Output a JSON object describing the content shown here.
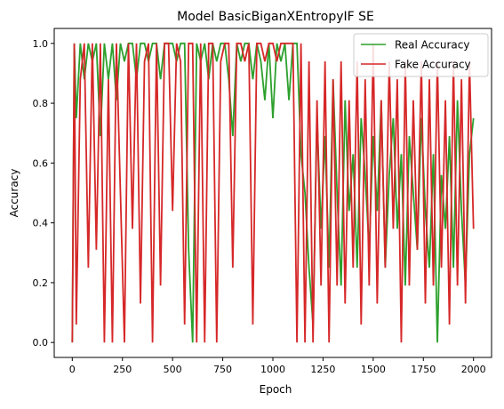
{
  "chart_data": {
    "type": "line",
    "title": "Model BasicBiganXEntropyIF SE",
    "xlabel": "Epoch",
    "ylabel": "Accuracy",
    "xlim": [
      -90,
      2090
    ],
    "ylim": [
      -0.05,
      1.05
    ],
    "x_ticks": [
      0,
      250,
      500,
      750,
      1000,
      1250,
      1500,
      1750,
      2000
    ],
    "y_ticks": [
      0.0,
      0.2,
      0.4,
      0.6,
      0.8,
      1.0
    ],
    "x_tick_labels": [
      "0",
      "250",
      "500",
      "750",
      "1000",
      "1250",
      "1500",
      "1750",
      "2000"
    ],
    "y_tick_labels": [
      "0.0",
      "0.2",
      "0.4",
      "0.6",
      "0.8",
      "1.0"
    ],
    "grid": false,
    "legend_position": "top-right",
    "series": [
      {
        "name": "Real Accuracy",
        "color": "#2ca02c",
        "x": [
          0,
          10,
          20,
          40,
          60,
          80,
          100,
          120,
          140,
          160,
          180,
          200,
          220,
          240,
          260,
          280,
          300,
          320,
          340,
          360,
          380,
          400,
          420,
          440,
          460,
          480,
          500,
          520,
          540,
          560,
          580,
          600,
          620,
          640,
          660,
          680,
          700,
          720,
          740,
          760,
          780,
          800,
          820,
          840,
          860,
          880,
          900,
          920,
          940,
          960,
          980,
          1000,
          1020,
          1040,
          1060,
          1080,
          1100,
          1120,
          1140,
          1160,
          1180,
          1200,
          1220,
          1240,
          1260,
          1280,
          1300,
          1320,
          1340,
          1360,
          1380,
          1400,
          1420,
          1440,
          1460,
          1480,
          1500,
          1520,
          1540,
          1560,
          1580,
          1600,
          1620,
          1640,
          1660,
          1680,
          1700,
          1720,
          1740,
          1760,
          1780,
          1800,
          1820,
          1840,
          1860,
          1880,
          1900,
          1920,
          1940,
          1960,
          1980,
          2000
        ],
        "y": [
          0.0,
          1.0,
          0.75,
          1.0,
          0.88,
          1.0,
          0.94,
          1.0,
          0.69,
          1.0,
          0.88,
          1.0,
          0.81,
          1.0,
          0.94,
          1.0,
          1.0,
          0.88,
          1.0,
          1.0,
          0.94,
          1.0,
          1.0,
          0.88,
          1.0,
          1.0,
          1.0,
          0.94,
          1.0,
          1.0,
          0.31,
          0.0,
          1.0,
          0.94,
          1.0,
          0.88,
          1.0,
          0.94,
          1.0,
          1.0,
          0.88,
          0.69,
          1.0,
          0.94,
          1.0,
          1.0,
          0.88,
          1.0,
          0.94,
          0.81,
          1.0,
          0.75,
          1.0,
          0.94,
          1.0,
          0.81,
          1.0,
          1.0,
          0.63,
          0.5,
          0.25,
          0.06,
          0.75,
          0.38,
          0.69,
          0.25,
          0.88,
          0.5,
          0.19,
          0.81,
          0.44,
          0.63,
          0.25,
          0.75,
          0.56,
          0.31,
          0.69,
          0.44,
          0.81,
          0.25,
          0.56,
          0.75,
          0.38,
          0.63,
          0.19,
          0.69,
          0.5,
          0.31,
          0.75,
          0.44,
          0.25,
          0.63,
          0.0,
          0.56,
          0.38,
          0.69,
          0.25,
          0.81,
          0.44,
          0.19,
          0.63,
          0.75
        ]
      },
      {
        "name": "Fake Accuracy",
        "color": "#d62728",
        "x": [
          0,
          10,
          20,
          40,
          60,
          80,
          100,
          120,
          140,
          160,
          180,
          200,
          220,
          240,
          260,
          280,
          300,
          320,
          340,
          360,
          380,
          400,
          420,
          440,
          460,
          480,
          500,
          520,
          540,
          560,
          580,
          600,
          620,
          640,
          660,
          680,
          700,
          720,
          740,
          760,
          780,
          800,
          820,
          840,
          860,
          880,
          900,
          920,
          940,
          960,
          980,
          1000,
          1020,
          1040,
          1060,
          1080,
          1100,
          1120,
          1140,
          1160,
          1180,
          1200,
          1220,
          1240,
          1260,
          1280,
          1300,
          1320,
          1340,
          1360,
          1380,
          1400,
          1420,
          1440,
          1460,
          1480,
          1500,
          1520,
          1540,
          1560,
          1580,
          1600,
          1620,
          1640,
          1660,
          1680,
          1700,
          1720,
          1740,
          1760,
          1780,
          1800,
          1820,
          1840,
          1860,
          1880,
          1900,
          1920,
          1940,
          1960,
          1980,
          2000
        ],
        "y": [
          0.0,
          1.0,
          0.06,
          0.88,
          1.0,
          0.25,
          1.0,
          0.31,
          1.0,
          0.0,
          0.88,
          0.0,
          1.0,
          0.5,
          0.0,
          1.0,
          0.38,
          1.0,
          0.13,
          0.94,
          1.0,
          0.0,
          1.0,
          0.19,
          1.0,
          1.0,
          0.44,
          1.0,
          0.94,
          0.06,
          1.0,
          1.0,
          0.0,
          1.0,
          0.0,
          1.0,
          1.0,
          0.0,
          0.94,
          1.0,
          1.0,
          0.25,
          1.0,
          1.0,
          0.94,
          1.0,
          0.06,
          1.0,
          1.0,
          0.94,
          1.0,
          1.0,
          0.94,
          1.0,
          1.0,
          1.0,
          1.0,
          0.0,
          1.0,
          0.0,
          0.94,
          0.0,
          0.81,
          0.19,
          0.94,
          0.0,
          0.88,
          0.19,
          0.94,
          0.13,
          0.81,
          0.25,
          0.94,
          0.06,
          0.88,
          0.19,
          1.0,
          0.13,
          0.81,
          0.25,
          0.94,
          0.38,
          0.88,
          0.0,
          0.94,
          0.19,
          0.81,
          0.31,
          0.94,
          0.13,
          0.88,
          0.19,
          0.94,
          0.25,
          0.81,
          0.06,
          0.94,
          0.19,
          0.88,
          0.13,
          0.94,
          0.38
        ]
      }
    ]
  }
}
